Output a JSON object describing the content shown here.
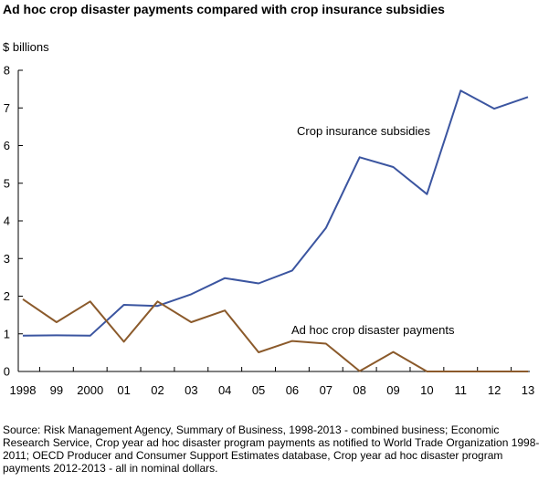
{
  "chart_data": {
    "type": "line",
    "title": "Ad hoc crop disaster payments compared with crop insurance subsidies",
    "ylabel": "$ billions",
    "xlabel": "",
    "x": [
      "1998",
      "99",
      "2000",
      "01",
      "02",
      "03",
      "04",
      "05",
      "06",
      "07",
      "08",
      "09",
      "10",
      "11",
      "12",
      "13"
    ],
    "yticks": [
      "0",
      "1",
      "2",
      "3",
      "4",
      "5",
      "6",
      "7",
      "8"
    ],
    "ylim": [
      0,
      8
    ],
    "grid": false,
    "series": [
      {
        "name": "Crop insurance subsidies",
        "color": "#3b55a0",
        "values": [
          0.95,
          0.96,
          0.95,
          1.77,
          1.74,
          2.05,
          2.48,
          2.34,
          2.68,
          3.81,
          5.69,
          5.43,
          4.71,
          7.46,
          6.98,
          7.29
        ]
      },
      {
        "name": "Ad hoc crop disaster payments",
        "color": "#8b5a2b",
        "values": [
          1.92,
          1.31,
          1.86,
          0.79,
          1.86,
          1.31,
          1.62,
          0.51,
          0.81,
          0.74,
          0.01,
          0.52,
          0.0,
          0.0,
          0.0,
          0.0
        ]
      }
    ]
  },
  "source": "Source: Risk Management Agency, Summary of Business, 1998-2013 - combined business; Economic Research Service, Crop year ad hoc disaster program payments as notified to World Trade Organization 1998-2011; OECD Producer and Consumer Support Estimates database, Crop year ad hoc disaster program payments 2012-2013 - all in nominal dollars."
}
